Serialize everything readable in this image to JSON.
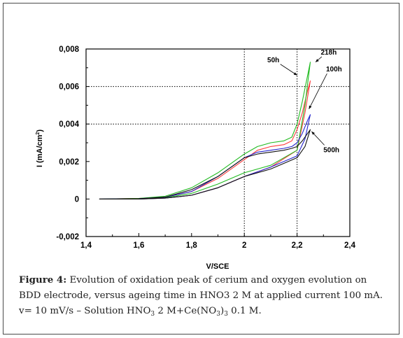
{
  "chart_data": {
    "type": "line",
    "title": "",
    "xlabel": "V/SCE",
    "ylabel_main": "I (mA/cm",
    "ylabel_sup": "2",
    "ylabel_close": ")",
    "xlim": [
      1.4,
      2.4
    ],
    "ylim": [
      -0.002,
      0.008
    ],
    "xticks": [
      1.4,
      1.6,
      1.8,
      2.0,
      2.2,
      2.4
    ],
    "xtick_labels": [
      "1,4",
      "1,6",
      "1,8",
      "2",
      "2,2",
      "2,4"
    ],
    "yticks": [
      -0.002,
      0,
      0.002,
      0.004,
      0.006,
      0.008
    ],
    "ytick_labels": [
      "-0,002",
      "0",
      "0,002",
      "0,004",
      "0,006",
      "0,008"
    ],
    "grid": "dotted at x=2, x=2.2, y=0.004, y=0.006, y=0.008",
    "annotations": [
      {
        "text": "218h",
        "x": 2.32,
        "y": 0.0077
      },
      {
        "text": "50h",
        "x": 2.11,
        "y": 0.0073
      },
      {
        "text": "100h",
        "x": 2.34,
        "y": 0.0068
      },
      {
        "text": "500h",
        "x": 2.33,
        "y": 0.0025
      }
    ],
    "series": [
      {
        "name": "50h",
        "color": "#ff3b3b",
        "forward": [
          [
            1.45,
            0
          ],
          [
            1.6,
            3e-05
          ],
          [
            1.7,
            0.0001
          ],
          [
            1.8,
            0.0004
          ],
          [
            1.9,
            0.0011
          ],
          [
            2.0,
            0.0021
          ],
          [
            2.05,
            0.0026
          ],
          [
            2.1,
            0.0028
          ],
          [
            2.15,
            0.0029
          ],
          [
            2.18,
            0.0031
          ],
          [
            2.2,
            0.0037
          ],
          [
            2.22,
            0.0046
          ],
          [
            2.24,
            0.0058
          ],
          [
            2.25,
            0.0063
          ]
        ],
        "reverse": [
          [
            2.25,
            0.0063
          ],
          [
            2.23,
            0.0046
          ],
          [
            2.2,
            0.0026
          ],
          [
            2.1,
            0.0017
          ],
          [
            2.0,
            0.0012
          ],
          [
            1.9,
            0.0006
          ],
          [
            1.8,
            0.0002
          ],
          [
            1.7,
            5e-05
          ],
          [
            1.6,
            0
          ],
          [
            1.45,
            0
          ]
        ]
      },
      {
        "name": "218h",
        "color": "#22bb22",
        "forward": [
          [
            1.45,
            0
          ],
          [
            1.6,
            3e-05
          ],
          [
            1.7,
            0.00015
          ],
          [
            1.8,
            0.0006
          ],
          [
            1.9,
            0.0014
          ],
          [
            2.0,
            0.0024
          ],
          [
            2.05,
            0.0028
          ],
          [
            2.1,
            0.003
          ],
          [
            2.15,
            0.0031
          ],
          [
            2.18,
            0.0033
          ],
          [
            2.2,
            0.004
          ],
          [
            2.22,
            0.0052
          ],
          [
            2.24,
            0.0066
          ],
          [
            2.25,
            0.0073
          ]
        ],
        "reverse": [
          [
            2.25,
            0.0073
          ],
          [
            2.23,
            0.005
          ],
          [
            2.2,
            0.0026
          ],
          [
            2.1,
            0.0018
          ],
          [
            2.0,
            0.0014
          ],
          [
            1.9,
            0.0008
          ],
          [
            1.8,
            0.0003
          ],
          [
            1.7,
            7e-05
          ],
          [
            1.6,
            0
          ],
          [
            1.45,
            0
          ]
        ]
      },
      {
        "name": "100h",
        "color": "#2323cc",
        "forward": [
          [
            1.45,
            0
          ],
          [
            1.6,
            2e-05
          ],
          [
            1.7,
            0.0001
          ],
          [
            1.8,
            0.0004
          ],
          [
            1.9,
            0.0012
          ],
          [
            2.0,
            0.0022
          ],
          [
            2.05,
            0.0025
          ],
          [
            2.1,
            0.0026
          ],
          [
            2.15,
            0.0027
          ],
          [
            2.18,
            0.0028
          ],
          [
            2.2,
            0.003
          ],
          [
            2.22,
            0.0035
          ],
          [
            2.24,
            0.0042
          ],
          [
            2.25,
            0.0045
          ]
        ],
        "reverse": [
          [
            2.25,
            0.0045
          ],
          [
            2.23,
            0.0032
          ],
          [
            2.2,
            0.0023
          ],
          [
            2.1,
            0.0017
          ],
          [
            2.0,
            0.0012
          ],
          [
            1.9,
            0.0006
          ],
          [
            1.8,
            0.0002
          ],
          [
            1.7,
            5e-05
          ],
          [
            1.6,
            0
          ],
          [
            1.45,
            0
          ]
        ]
      },
      {
        "name": "500h",
        "color": "#111111",
        "forward": [
          [
            1.45,
            0
          ],
          [
            1.6,
            2e-05
          ],
          [
            1.7,
            0.0001
          ],
          [
            1.8,
            0.0005
          ],
          [
            1.9,
            0.0012
          ],
          [
            2.0,
            0.0022
          ],
          [
            2.05,
            0.0024
          ],
          [
            2.1,
            0.0025
          ],
          [
            2.15,
            0.0026
          ],
          [
            2.18,
            0.0027
          ],
          [
            2.2,
            0.0028
          ],
          [
            2.22,
            0.0031
          ],
          [
            2.24,
            0.0035
          ],
          [
            2.25,
            0.0037
          ]
        ],
        "reverse": [
          [
            2.25,
            0.0037
          ],
          [
            2.23,
            0.0028
          ],
          [
            2.2,
            0.0022
          ],
          [
            2.1,
            0.0016
          ],
          [
            2.0,
            0.0012
          ],
          [
            1.9,
            0.0006
          ],
          [
            1.8,
            0.0002
          ],
          [
            1.7,
            5e-05
          ],
          [
            1.6,
            0
          ],
          [
            1.45,
            0
          ]
        ]
      }
    ]
  },
  "caption": {
    "label": "Figure 4:",
    "text1": " Evolution of oxidation peak of cerium and oxygen evolution on BDD electrode, versus ageing time in HNO3 2 M at applied current 100 mA. v= 10 mV/s – Solution HNO",
    "sub1": "3",
    "text2": " 2 M+Ce(NO",
    "sub2": "3",
    "text3": ")",
    "sub3": "3",
    "text4": " 0.1 M."
  }
}
